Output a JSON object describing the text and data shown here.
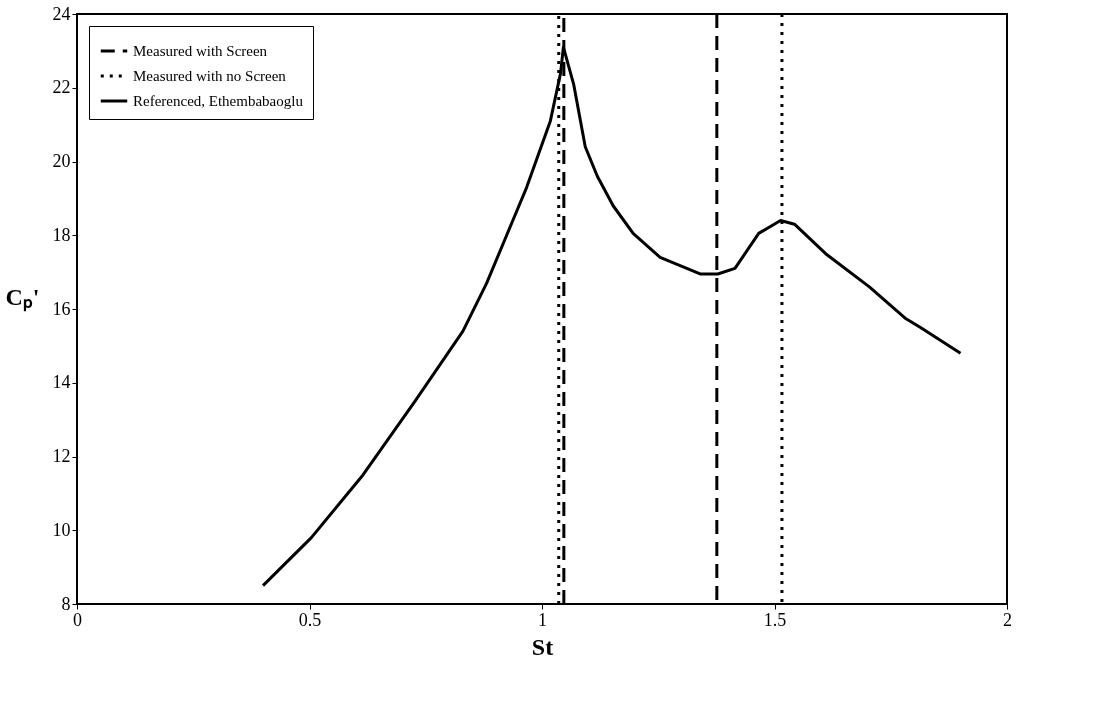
{
  "chart_data": {
    "type": "line",
    "xlabel": "St",
    "ylabel": "Cₚ'",
    "xlim": [
      0,
      2
    ],
    "xticks": [
      0,
      0.5,
      1,
      1.5,
      2
    ],
    "ylim": [
      8,
      24
    ],
    "yticks": [
      8,
      10,
      12,
      14,
      16,
      18,
      20,
      22,
      24
    ],
    "grid": false,
    "legend": "top left",
    "marker": "none",
    "series": [
      {
        "name": "Measured with Screen",
        "color": "#000000",
        "line_style": "dashed",
        "x": [
          1.047,
          1.047,
          1.2,
          1.376,
          1.376
        ],
        "values": [
          8,
          24,
          null,
          24,
          8
        ]
      },
      {
        "name": "Measured with no Screen",
        "color": "#000000",
        "line_style": "dotted",
        "x": [
          1.036,
          1.036,
          1.3,
          1.516,
          1.516
        ],
        "values": [
          8,
          24,
          null,
          24,
          8
        ]
      },
      {
        "name": "Referenced, Ethembabaoglu",
        "color": "#000000",
        "line_style": "solid",
        "x": [
          0.4,
          0.504,
          0.615,
          0.727,
          0.83,
          0.881,
          0.924,
          0.967,
          1.018,
          1.04,
          1.046,
          1.068,
          1.093,
          1.119,
          1.153,
          1.196,
          1.254,
          1.34,
          1.378,
          1.415,
          1.466,
          1.513,
          1.543,
          1.61,
          1.704,
          1.781,
          1.814,
          1.9
        ],
        "values": [
          8.5,
          9.8,
          11.5,
          13.5,
          15.4,
          16.7,
          18.0,
          19.3,
          21.1,
          22.4,
          23.1,
          22.1,
          20.4,
          19.6,
          18.8,
          18.05,
          17.4,
          16.95,
          16.95,
          17.1,
          18.05,
          18.4,
          18.3,
          17.5,
          16.6,
          15.75,
          15.5,
          14.8
        ]
      }
    ]
  }
}
